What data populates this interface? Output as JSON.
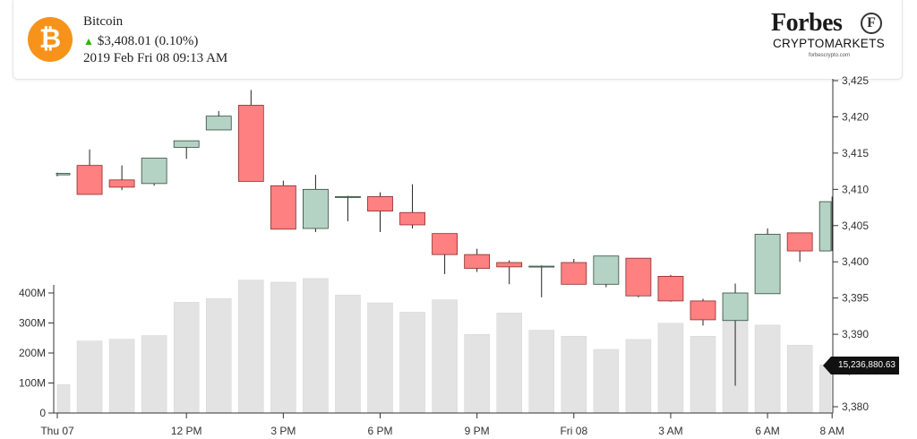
{
  "header": {
    "coin_name": "Bitcoin",
    "coin_symbol_glyph": "₿",
    "coin_color": "#f7931a",
    "price": "$3,408.01",
    "change": "(0.10%)",
    "change_direction": "up",
    "up_color": "#2db400",
    "timestamp": "2019 Feb Fri 08 09:13 AM"
  },
  "brand": {
    "name": "Forbes",
    "mark": "F",
    "subtitle": "CRYPTOMARKETS",
    "url": "forbescrypto.com"
  },
  "tooltip": {
    "volume_value": "15,236,880.63"
  },
  "colors": {
    "up_candle": "#b5d3c4",
    "down_candle": "#ff8080",
    "volume_bar": "#e3e3e3",
    "axis": "#333333"
  },
  "chart_data": {
    "type": "candlestick",
    "x_ticks": [
      {
        "label": "Thu 07",
        "hour": 0
      },
      {
        "label": "12 PM",
        "hour": 4
      },
      {
        "label": "3 PM",
        "hour": 7
      },
      {
        "label": "6 PM",
        "hour": 10
      },
      {
        "label": "9 PM",
        "hour": 13
      },
      {
        "label": "Fri 08",
        "hour": 16
      },
      {
        "label": "3 AM",
        "hour": 19
      },
      {
        "label": "6 AM",
        "hour": 22
      },
      {
        "label": "8 AM",
        "hour": 24
      }
    ],
    "price_axis": {
      "ticks": [
        3380,
        3385,
        3390,
        3395,
        3400,
        3405,
        3410,
        3415,
        3420,
        3425
      ],
      "labels": [
        "3,380",
        "3,385",
        "3,390",
        "3,395",
        "3,400",
        "3,405",
        "3,410",
        "3,415",
        "3,420",
        "3,425"
      ],
      "range": [
        3380,
        3425
      ]
    },
    "volume_axis": {
      "ticks": [
        0,
        100,
        200,
        300,
        400
      ],
      "labels": [
        "0",
        "100M",
        "200M",
        "300M",
        "400M"
      ],
      "range_million": [
        0,
        400
      ]
    },
    "candles": [
      {
        "o": 3412.0,
        "h": 3412.3,
        "l": 3411.8,
        "c": 3412.2,
        "v": 95
      },
      {
        "o": 3413.3,
        "h": 3415.5,
        "l": 3409.3,
        "c": 3409.3,
        "v": 240
      },
      {
        "o": 3411.3,
        "h": 3413.3,
        "l": 3409.9,
        "c": 3410.3,
        "v": 246
      },
      {
        "o": 3410.8,
        "h": 3414.3,
        "l": 3410.5,
        "c": 3414.3,
        "v": 258
      },
      {
        "o": 3415.8,
        "h": 3416.7,
        "l": 3414.2,
        "c": 3416.7,
        "v": 369
      },
      {
        "o": 3418.2,
        "h": 3420.8,
        "l": 3418.2,
        "c": 3420.1,
        "v": 381
      },
      {
        "o": 3421.6,
        "h": 3423.7,
        "l": 3411.1,
        "c": 3411.1,
        "v": 443
      },
      {
        "o": 3410.5,
        "h": 3411.2,
        "l": 3404.5,
        "c": 3404.5,
        "v": 436
      },
      {
        "o": 3404.6,
        "h": 3412.0,
        "l": 3404.1,
        "c": 3410.0,
        "v": 448
      },
      {
        "o": 3409.0,
        "h": 3409.1,
        "l": 3405.6,
        "c": 3409.0,
        "v": 393
      },
      {
        "o": 3409.0,
        "h": 3409.6,
        "l": 3404.1,
        "c": 3407.0,
        "v": 367
      },
      {
        "o": 3406.8,
        "h": 3410.7,
        "l": 3404.6,
        "c": 3405.1,
        "v": 336
      },
      {
        "o": 3403.9,
        "h": 3403.9,
        "l": 3398.3,
        "c": 3401.0,
        "v": 377
      },
      {
        "o": 3401.0,
        "h": 3401.8,
        "l": 3398.6,
        "c": 3399.1,
        "v": 262
      },
      {
        "o": 3399.9,
        "h": 3400.2,
        "l": 3396.9,
        "c": 3399.3,
        "v": 333
      },
      {
        "o": 3399.4,
        "h": 3399.5,
        "l": 3395.1,
        "c": 3399.4,
        "v": 276
      },
      {
        "o": 3399.9,
        "h": 3400.4,
        "l": 3396.9,
        "c": 3396.9,
        "v": 256
      },
      {
        "o": 3396.9,
        "h": 3400.8,
        "l": 3396.5,
        "c": 3400.8,
        "v": 212
      },
      {
        "o": 3400.5,
        "h": 3400.5,
        "l": 3395.1,
        "c": 3395.3,
        "v": 245
      },
      {
        "o": 3398.0,
        "h": 3398.2,
        "l": 3394.5,
        "c": 3394.6,
        "v": 299
      },
      {
        "o": 3394.6,
        "h": 3394.9,
        "l": 3391.2,
        "c": 3392.0,
        "v": 256
      },
      {
        "o": 3391.9,
        "h": 3397.0,
        "l": 3382.9,
        "c": 3395.7,
        "v": 330
      },
      {
        "o": 3395.6,
        "h": 3404.6,
        "l": 3395.6,
        "c": 3403.8,
        "v": 293
      },
      {
        "o": 3404.0,
        "h": 3404.0,
        "l": 3400.0,
        "c": 3401.5,
        "v": 226
      },
      {
        "o": 3401.5,
        "h": 3409.0,
        "l": 3401.5,
        "c": 3408.3,
        "v": 160
      }
    ]
  }
}
